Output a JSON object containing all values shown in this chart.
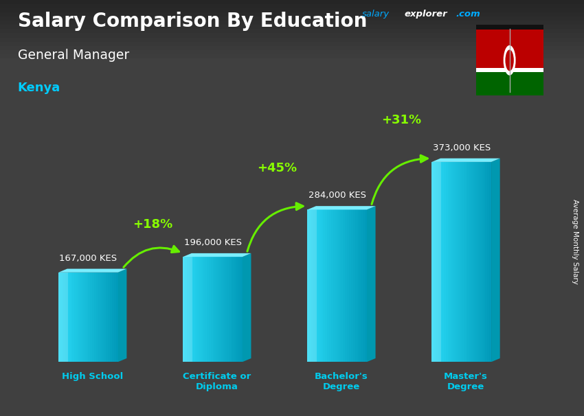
{
  "title_part1": "Salary Comparison By Education",
  "subtitle": "General Manager",
  "country": "Kenya",
  "categories": [
    "High School",
    "Certificate or\nDiploma",
    "Bachelor's\nDegree",
    "Master's\nDegree"
  ],
  "values": [
    167000,
    196000,
    284000,
    373000
  ],
  "labels": [
    "167,000 KES",
    "196,000 KES",
    "284,000 KES",
    "373,000 KES"
  ],
  "pct_changes": [
    "+18%",
    "+45%",
    "+31%"
  ],
  "bar_front_color": "#29d8f5",
  "bar_side_color": "#0098b0",
  "bar_top_color": "#7aeeff",
  "title_color": "#ffffff",
  "subtitle_color": "#ffffff",
  "country_color": "#00ccff",
  "label_color": "#ffffff",
  "pct_color": "#88ff00",
  "arrow_color": "#66ee00",
  "watermark_salary": "salary",
  "watermark_explorer": "explorer",
  "watermark_com": ".com",
  "watermark_color_salary": "#00aaff",
  "watermark_color_explorer": "#ffffff",
  "watermark_color_com": "#00aaff",
  "ylabel": "Average Monthly Salary",
  "bg_color": "#3a3a3a"
}
